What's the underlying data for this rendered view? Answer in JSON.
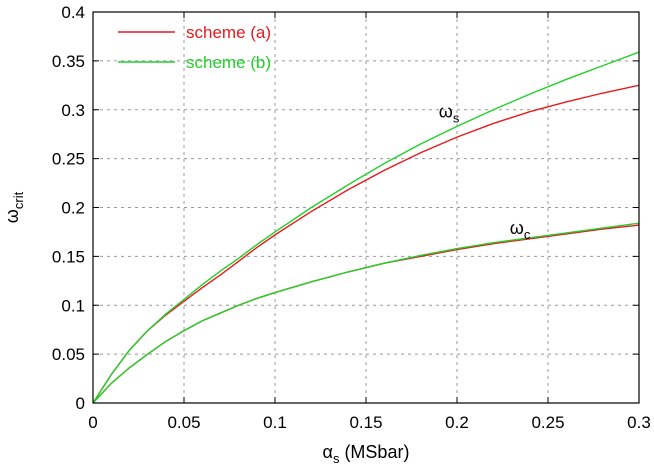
{
  "chart_data": {
    "type": "line",
    "title": "",
    "xlabel": {
      "base": "α",
      "sub": "s",
      "rest": " (MSbar)"
    },
    "ylabel": {
      "base": "ω",
      "sub": "crit"
    },
    "xlim": [
      0,
      0.3
    ],
    "ylim": [
      0,
      0.4
    ],
    "x_ticks": [
      "0",
      "0.05",
      "0.1",
      "0.15",
      "0.2",
      "0.25",
      "0.3"
    ],
    "x_tick_values": [
      0,
      0.05,
      0.1,
      0.15,
      0.2,
      0.25,
      0.3
    ],
    "y_ticks": [
      "0",
      "0.05",
      "0.1",
      "0.15",
      "0.2",
      "0.25",
      "0.3",
      "0.35",
      "0.4"
    ],
    "y_tick_values": [
      0,
      0.05,
      0.1,
      0.15,
      0.2,
      0.25,
      0.3,
      0.35,
      0.4
    ],
    "grid": true,
    "legend": {
      "placement": "top-left",
      "entries": [
        {
          "label": "scheme (a)",
          "color": "#e8191c"
        },
        {
          "label": "scheme (b)",
          "color": "#22d02a"
        }
      ]
    },
    "annotations": [
      {
        "base": "ω",
        "sub": "s",
        "x": 0.19,
        "y": 0.292
      },
      {
        "base": "ω",
        "sub": "c",
        "x": 0.229,
        "y": 0.173
      }
    ],
    "x": [
      0,
      0.01,
      0.02,
      0.03,
      0.04,
      0.05,
      0.06,
      0.07,
      0.08,
      0.09,
      0.1,
      0.12,
      0.14,
      0.16,
      0.18,
      0.2,
      0.22,
      0.24,
      0.26,
      0.28,
      0.3
    ],
    "series": [
      {
        "name": "scheme (a)",
        "curve": "ω_s",
        "color": "#e8191c",
        "values": [
          0,
          0.029,
          0.054,
          0.074,
          0.09,
          0.104,
          0.118,
          0.131,
          0.145,
          0.159,
          0.172,
          0.196,
          0.218,
          0.238,
          0.256,
          0.272,
          0.286,
          0.298,
          0.308,
          0.317,
          0.325
        ]
      },
      {
        "name": "scheme (b)",
        "curve": "ω_s",
        "color": "#22d02a",
        "values": [
          0,
          0.029,
          0.054,
          0.074,
          0.091,
          0.106,
          0.121,
          0.135,
          0.148,
          0.162,
          0.175,
          0.2,
          0.223,
          0.245,
          0.265,
          0.283,
          0.3,
          0.316,
          0.331,
          0.345,
          0.359
        ]
      },
      {
        "name": "scheme (a)",
        "curve": "ω_c",
        "color": "#e8191c",
        "values": [
          0,
          0.02,
          0.036,
          0.05,
          0.063,
          0.074,
          0.084,
          0.092,
          0.1,
          0.107,
          0.113,
          0.124,
          0.134,
          0.143,
          0.15,
          0.157,
          0.163,
          0.168,
          0.173,
          0.178,
          0.182
        ]
      },
      {
        "name": "scheme (b)",
        "curve": "ω_c",
        "color": "#22d02a",
        "values": [
          0,
          0.02,
          0.036,
          0.05,
          0.063,
          0.074,
          0.084,
          0.092,
          0.1,
          0.107,
          0.113,
          0.124,
          0.134,
          0.143,
          0.151,
          0.158,
          0.164,
          0.169,
          0.174,
          0.179,
          0.184
        ]
      }
    ]
  }
}
